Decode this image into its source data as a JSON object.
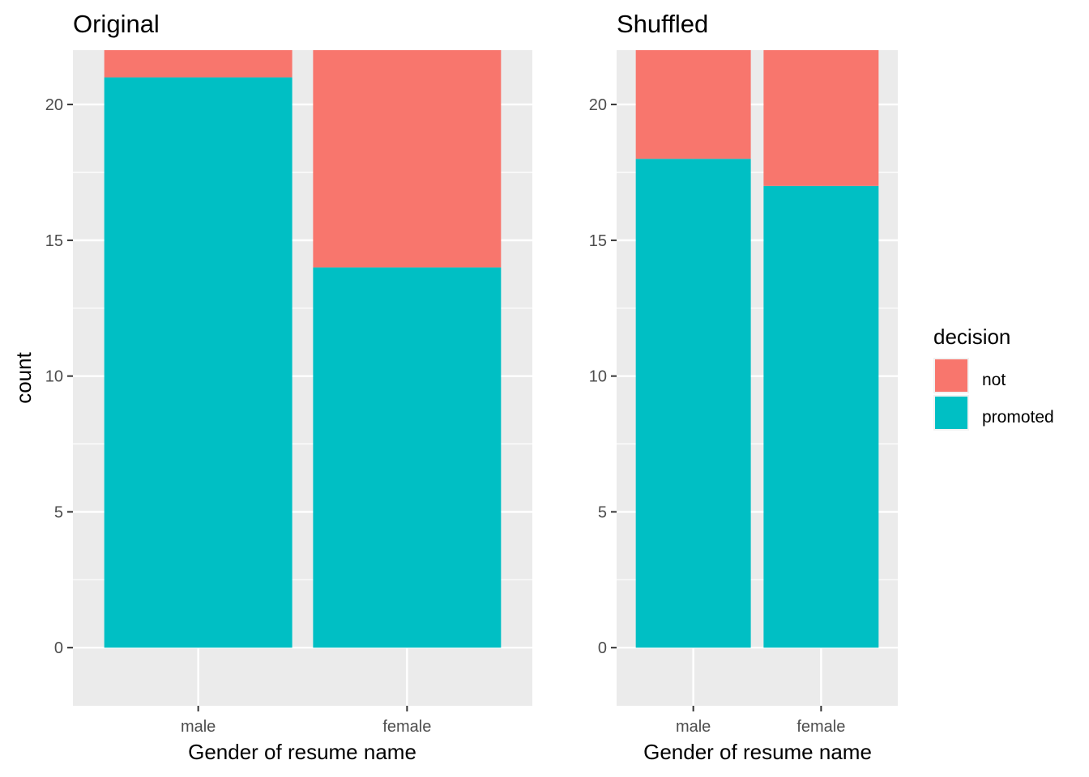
{
  "chart_data": [
    {
      "type": "bar",
      "stacked": true,
      "title": "Original",
      "xlabel": "Gender of resume name",
      "ylabel": "count",
      "categories": [
        "male",
        "female"
      ],
      "series": [
        {
          "name": "promoted",
          "values": [
            21,
            14
          ]
        },
        {
          "name": "not",
          "values": [
            3,
            10
          ]
        }
      ],
      "ylim": [
        0,
        22
      ],
      "yticks": [
        "0",
        "5",
        "10",
        "15",
        "20"
      ],
      "grid": true
    },
    {
      "type": "bar",
      "stacked": true,
      "title": "Shuffled",
      "xlabel": "Gender of resume name",
      "ylabel": "",
      "categories": [
        "male",
        "female"
      ],
      "series": [
        {
          "name": "promoted",
          "values": [
            18,
            17
          ]
        },
        {
          "name": "not",
          "values": [
            6,
            7
          ]
        }
      ],
      "ylim": [
        0,
        22
      ],
      "yticks": [
        "0",
        "5",
        "10",
        "15",
        "20"
      ],
      "grid": true
    }
  ],
  "legend": {
    "title": "decision",
    "placement": "right",
    "items": [
      {
        "label": "not",
        "color": "#F8766D"
      },
      {
        "label": "promoted",
        "color": "#00BFC4"
      }
    ]
  },
  "colors": {
    "not": "#F8766D",
    "promoted": "#00BFC4",
    "panel": "#EBEBEB",
    "grid": "#FFFFFF"
  }
}
